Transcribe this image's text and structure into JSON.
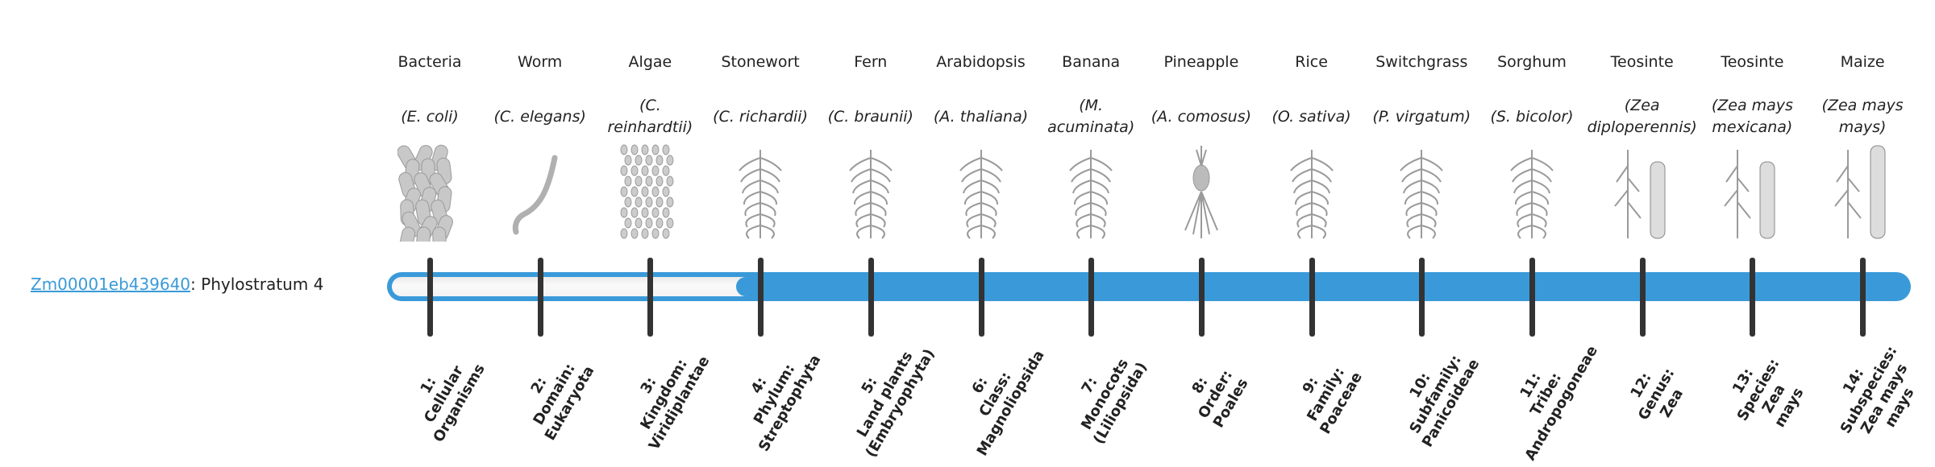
{
  "gene": {
    "id": "Zm00001eb439640",
    "suffix": ": Phylostratum 4",
    "phylostratum": 4
  },
  "colors": {
    "bar": "#3a9ad9",
    "tick": "#333333",
    "link": "#3a9ad9"
  },
  "organisms": [
    {
      "common": "Bacteria",
      "scientific": "(E. coli)",
      "icon": "bacteria-icon"
    },
    {
      "common": "Worm",
      "scientific": "(C. elegans)",
      "icon": "worm-icon"
    },
    {
      "common": "Algae",
      "scientific": "(C. reinhardtii)",
      "icon": "algae-icon"
    },
    {
      "common": "Stonewort",
      "scientific": "(C. richardii)",
      "icon": "stonewort-icon"
    },
    {
      "common": "Fern",
      "scientific": "(C. braunii)",
      "icon": "fern-icon"
    },
    {
      "common": "Arabidopsis",
      "scientific": "(A. thaliana)",
      "icon": "arabidopsis-icon"
    },
    {
      "common": "Banana",
      "scientific": "(M. acuminata)",
      "icon": "banana-icon"
    },
    {
      "common": "Pineapple",
      "scientific": "(A. comosus)",
      "icon": "pineapple-icon"
    },
    {
      "common": "Rice",
      "scientific": "(O. sativa)",
      "icon": "rice-icon"
    },
    {
      "common": "Switchgrass",
      "scientific": "(P. virgatum)",
      "icon": "switchgrass-icon"
    },
    {
      "common": "Sorghum",
      "scientific": "(S. bicolor)",
      "icon": "sorghum-icon"
    },
    {
      "common": "Teosinte",
      "scientific": "(Zea diploperennis)",
      "icon": "teosinte-icon"
    },
    {
      "common": "Teosinte",
      "scientific": "(Zea mays mexicana)",
      "icon": "teosinte-icon"
    },
    {
      "common": "Maize",
      "scientific": "(Zea mays mays)",
      "icon": "maize-icon"
    }
  ],
  "strata": [
    "1:\nCellular\nOrganisms",
    "2:\nDomain:\nEukaryota",
    "3:\nKingdom:\nViridiplantae",
    "4:\nPhylum:\nStreptophyta",
    "5:\nLand plants\n(Embryophyta)",
    "6:\nClass:\nMagnoliopsida",
    "7:\nMonocots\n(Liliopsida)",
    "8:\nOrder:\nPoales",
    "9:\nFamily:\nPoaceae",
    "10:\nSubfamily:\nPanicoideae",
    "11:\nTribe:\nAndropogoneae",
    "12:\nGenus:\nZea",
    "13:\nSpecies:\nZea\nmays",
    "14:\nSubspecies:\nZea mays\nmays"
  ]
}
